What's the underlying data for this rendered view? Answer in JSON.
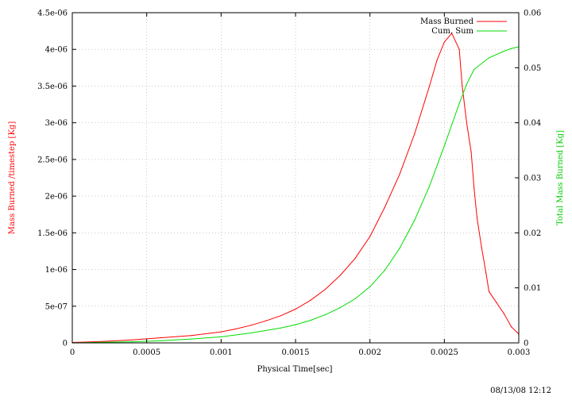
{
  "chart_data": {
    "type": "line",
    "xlabel": "Physical Time[sec]",
    "ylabel_left": "Mass Burned /timestep [Kg]",
    "ylabel_right": "Total Mass Burned [Kg]",
    "xlim": [
      0,
      0.003
    ],
    "ylim_left": [
      0,
      4.5e-06
    ],
    "ylim_right": [
      0,
      0.06
    ],
    "grid": true,
    "legend_position": "top-right",
    "x_ticks": [
      0,
      0.0005,
      0.001,
      0.0015,
      0.002,
      0.0025,
      0.003
    ],
    "x_tick_labels": [
      "0",
      "0.0005",
      "0.001",
      "0.0015",
      "0.002",
      "0.0025",
      "0.003"
    ],
    "y_left_ticks": [
      0,
      5e-07,
      1e-06,
      1.5e-06,
      2e-06,
      2.5e-06,
      3e-06,
      3.5e-06,
      4e-06,
      4.5e-06
    ],
    "y_left_tick_labels": [
      "0",
      "5e-07",
      "1e-06",
      "1.5e-06",
      "2e-06",
      "2.5e-06",
      "3e-06",
      "3.5e-06",
      "4e-06",
      "4.5e-06"
    ],
    "y_right_ticks": [
      0,
      0.01,
      0.02,
      0.03,
      0.04,
      0.05,
      0.06
    ],
    "y_right_tick_labels": [
      "0",
      "0.01",
      "0.02",
      "0.03",
      "0.04",
      "0.05",
      "0.06"
    ],
    "series": [
      {
        "name": "Mass Burned",
        "axis": "left",
        "color": "#ff0000",
        "x": [
          0,
          0.0002,
          0.0004,
          0.0006,
          0.0008,
          0.001,
          0.0011,
          0.0012,
          0.0013,
          0.0014,
          0.0015,
          0.0016,
          0.0017,
          0.0018,
          0.0019,
          0.002,
          0.0021,
          0.0022,
          0.0023,
          0.0024,
          0.00245,
          0.0025,
          0.00255,
          0.0026,
          0.00262,
          0.00265,
          0.00268,
          0.0027,
          0.00272,
          0.00275,
          0.00278,
          0.0028,
          0.00285,
          0.0029,
          0.00295,
          0.003
        ],
        "values": [
          5e-09,
          2e-08,
          4e-08,
          7e-08,
          1e-07,
          1.5e-07,
          1.9e-07,
          2.4e-07,
          3e-07,
          3.7e-07,
          4.6e-07,
          5.8e-07,
          7.3e-07,
          9.2e-07,
          1.15e-06,
          1.45e-06,
          1.85e-06,
          2.3e-06,
          2.85e-06,
          3.5e-06,
          3.85e-06,
          4.1e-06,
          4.22e-06,
          4e-06,
          3.5e-06,
          3e-06,
          2.6e-06,
          2.1e-06,
          1.7e-06,
          1.3e-06,
          9.5e-07,
          7e-07,
          5.5e-07,
          4e-07,
          2.2e-07,
          1.2e-07
        ]
      },
      {
        "name": "Cum. Sum",
        "axis": "right",
        "color": "#00dd00",
        "x": [
          0,
          0.0002,
          0.0004,
          0.0006,
          0.0008,
          0.001,
          0.0012,
          0.0014,
          0.0015,
          0.0016,
          0.0017,
          0.0018,
          0.0019,
          0.002,
          0.0021,
          0.0022,
          0.0023,
          0.0024,
          0.0025,
          0.0026,
          0.00265,
          0.0027,
          0.0028,
          0.0029,
          0.00295,
          0.003
        ],
        "values": [
          0,
          0.0001,
          0.0002,
          0.0004,
          0.0007,
          0.0011,
          0.0018,
          0.0027,
          0.0033,
          0.0041,
          0.0051,
          0.0064,
          0.008,
          0.0102,
          0.0132,
          0.0172,
          0.0223,
          0.0285,
          0.0358,
          0.0435,
          0.047,
          0.0497,
          0.0518,
          0.053,
          0.0535,
          0.0538
        ]
      }
    ]
  },
  "footer": {
    "timestamp": "08/13/08 12:12"
  }
}
